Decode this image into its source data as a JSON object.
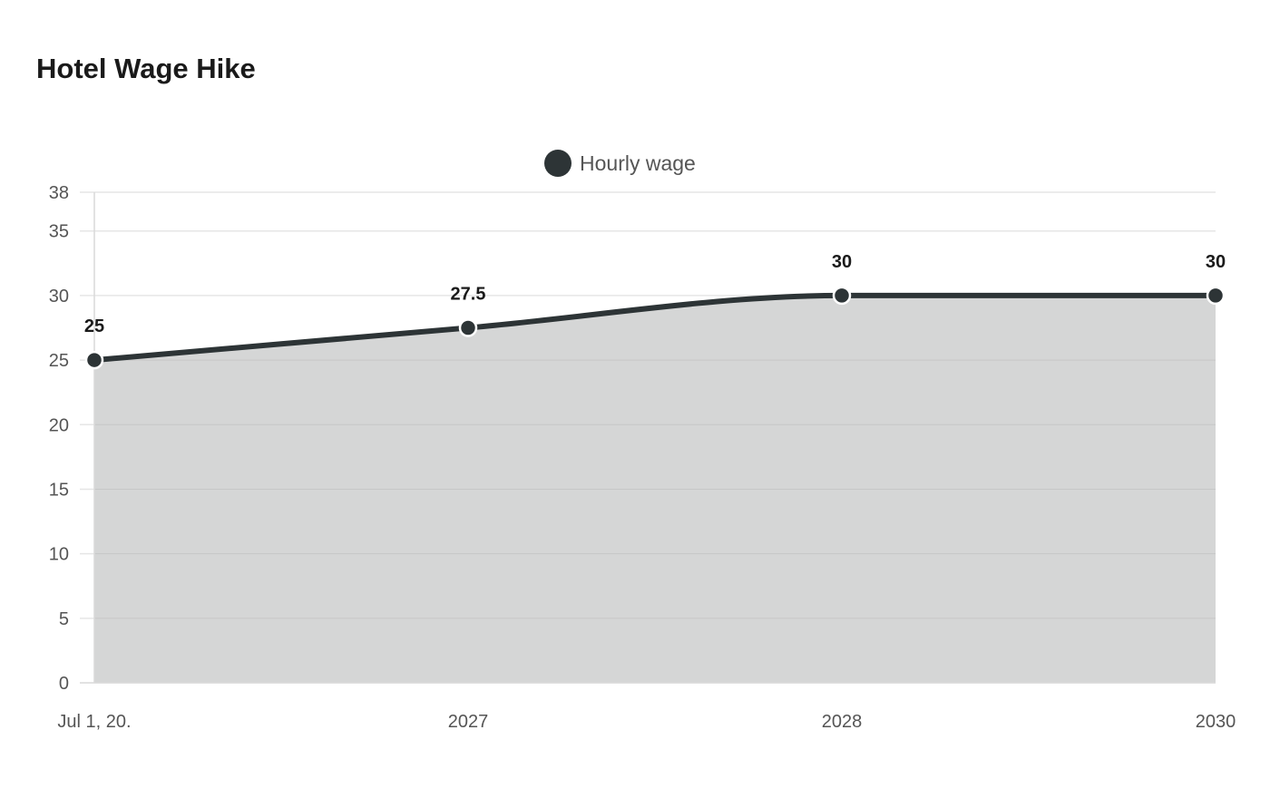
{
  "chart_data": {
    "type": "area",
    "title": "Hotel Wage Hike",
    "xlabel": "",
    "ylabel": "",
    "categories": [
      "Jul 1, 20.",
      "2027",
      "2028",
      "2030"
    ],
    "series": [
      {
        "name": "Hourly wage",
        "values": [
          25,
          27.5,
          30,
          30
        ],
        "data_labels": [
          "25",
          "27.5",
          "30",
          "30"
        ]
      }
    ],
    "ylim": [
      0,
      38
    ],
    "yticks": [
      0,
      5,
      10,
      15,
      20,
      25,
      30,
      35,
      38
    ],
    "grid": true,
    "legend": "top-center",
    "colors": {
      "line": "#2d3436",
      "fill": "#d5d6d6",
      "grid": "#e6e6e6",
      "axis": "#d9d9d9"
    }
  }
}
